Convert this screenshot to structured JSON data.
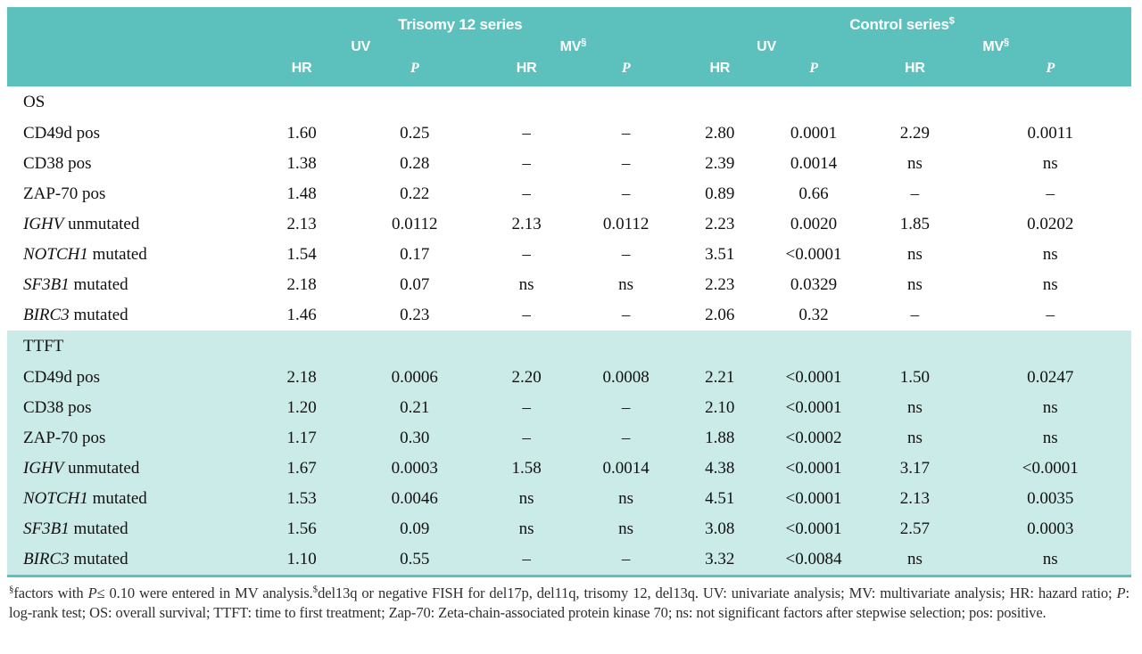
{
  "colors": {
    "header_teal": "#5cc0bd",
    "section_cyan": "#cbebe8",
    "rule_teal": "#5cc0bd"
  },
  "table": {
    "col_groups": [
      {
        "label": "Trisomy 12 series",
        "sup": ""
      },
      {
        "label": "Control series",
        "sup": "$"
      }
    ],
    "subheaders": {
      "uv": "UV",
      "mv": "MV",
      "mv_sup": "§",
      "hr": "HR",
      "p": "P"
    },
    "sections": [
      {
        "title": "OS",
        "highlight": false,
        "rows": [
          {
            "gene": "",
            "rest": "CD49d pos",
            "values": [
              "1.60",
              "0.25",
              "–",
              "–",
              "2.80",
              "0.0001",
              "2.29",
              "0.0011"
            ]
          },
          {
            "gene": "",
            "rest": "CD38 pos",
            "values": [
              "1.38",
              "0.28",
              "–",
              "–",
              "2.39",
              "0.0014",
              "ns",
              "ns"
            ]
          },
          {
            "gene": "",
            "rest": "ZAP-70 pos",
            "values": [
              "1.48",
              "0.22",
              "–",
              "–",
              "0.89",
              "0.66",
              "–",
              "–"
            ]
          },
          {
            "gene": "IGHV",
            "rest": " unmutated",
            "values": [
              "2.13",
              "0.0112",
              "2.13",
              "0.0112",
              "2.23",
              "0.0020",
              "1.85",
              "0.0202"
            ]
          },
          {
            "gene": "NOTCH1",
            "rest": " mutated",
            "values": [
              "1.54",
              "0.17",
              "–",
              "–",
              "3.51",
              "<0.0001",
              "ns",
              "ns"
            ]
          },
          {
            "gene": "SF3B1",
            "rest": " mutated",
            "values": [
              "2.18",
              "0.07",
              "ns",
              "ns",
              "2.23",
              "0.0329",
              "ns",
              "ns"
            ]
          },
          {
            "gene": "BIRC3",
            "rest": " mutated",
            "values": [
              "1.46",
              "0.23",
              "–",
              "–",
              "2.06",
              "0.32",
              "–",
              "–"
            ]
          }
        ]
      },
      {
        "title": "TTFT",
        "highlight": true,
        "rows": [
          {
            "gene": "",
            "rest": "CD49d pos",
            "values": [
              "2.18",
              "0.0006",
              "2.20",
              "0.0008",
              "2.21",
              "<0.0001",
              "1.50",
              "0.0247"
            ]
          },
          {
            "gene": "",
            "rest": "CD38 pos",
            "values": [
              "1.20",
              "0.21",
              "–",
              "–",
              "2.10",
              "<0.0001",
              "ns",
              "ns"
            ]
          },
          {
            "gene": "",
            "rest": "ZAP-70 pos",
            "values": [
              "1.17",
              "0.30",
              "–",
              "–",
              "1.88",
              "<0.0002",
              "ns",
              "ns"
            ]
          },
          {
            "gene": "IGHV",
            "rest": " unmutated",
            "values": [
              "1.67",
              "0.0003",
              "1.58",
              "0.0014",
              "4.38",
              "<0.0001",
              "3.17",
              "<0.0001"
            ]
          },
          {
            "gene": "NOTCH1",
            "rest": " mutated",
            "values": [
              "1.53",
              "0.0046",
              "ns",
              "ns",
              "4.51",
              "<0.0001",
              "2.13",
              "0.0035"
            ]
          },
          {
            "gene": "SF3B1",
            "rest": " mutated",
            "values": [
              "1.56",
              "0.09",
              "ns",
              "ns",
              "3.08",
              "<0.0001",
              "2.57",
              "0.0003"
            ]
          },
          {
            "gene": "BIRC3",
            "rest": " mutated",
            "values": [
              "1.10",
              "0.55",
              "–",
              "–",
              "3.32",
              "<0.0084",
              "ns",
              "ns"
            ]
          }
        ]
      }
    ]
  },
  "footnote": {
    "segments": [
      {
        "t": "§",
        "sup": true
      },
      {
        "t": "factors with "
      },
      {
        "t": "P",
        "i": true
      },
      {
        "t": "≤ 0.10 were entered in MV analysis."
      },
      {
        "t": "$",
        "sup": true
      },
      {
        "t": "del13q or negative FISH for del17p,  del11q, trisomy 12, del13q. UV: univariate analysis; MV: multivariate analysis; HR: hazard ratio; "
      },
      {
        "t": "P",
        "i": true
      },
      {
        "t": ": log-rank test; OS: overall survival; TTFT: time to first treatment; Zap-70: Zeta-chain-associated protein kinase 70; ns: not significant factors after stepwise selection; pos: positive."
      }
    ]
  }
}
